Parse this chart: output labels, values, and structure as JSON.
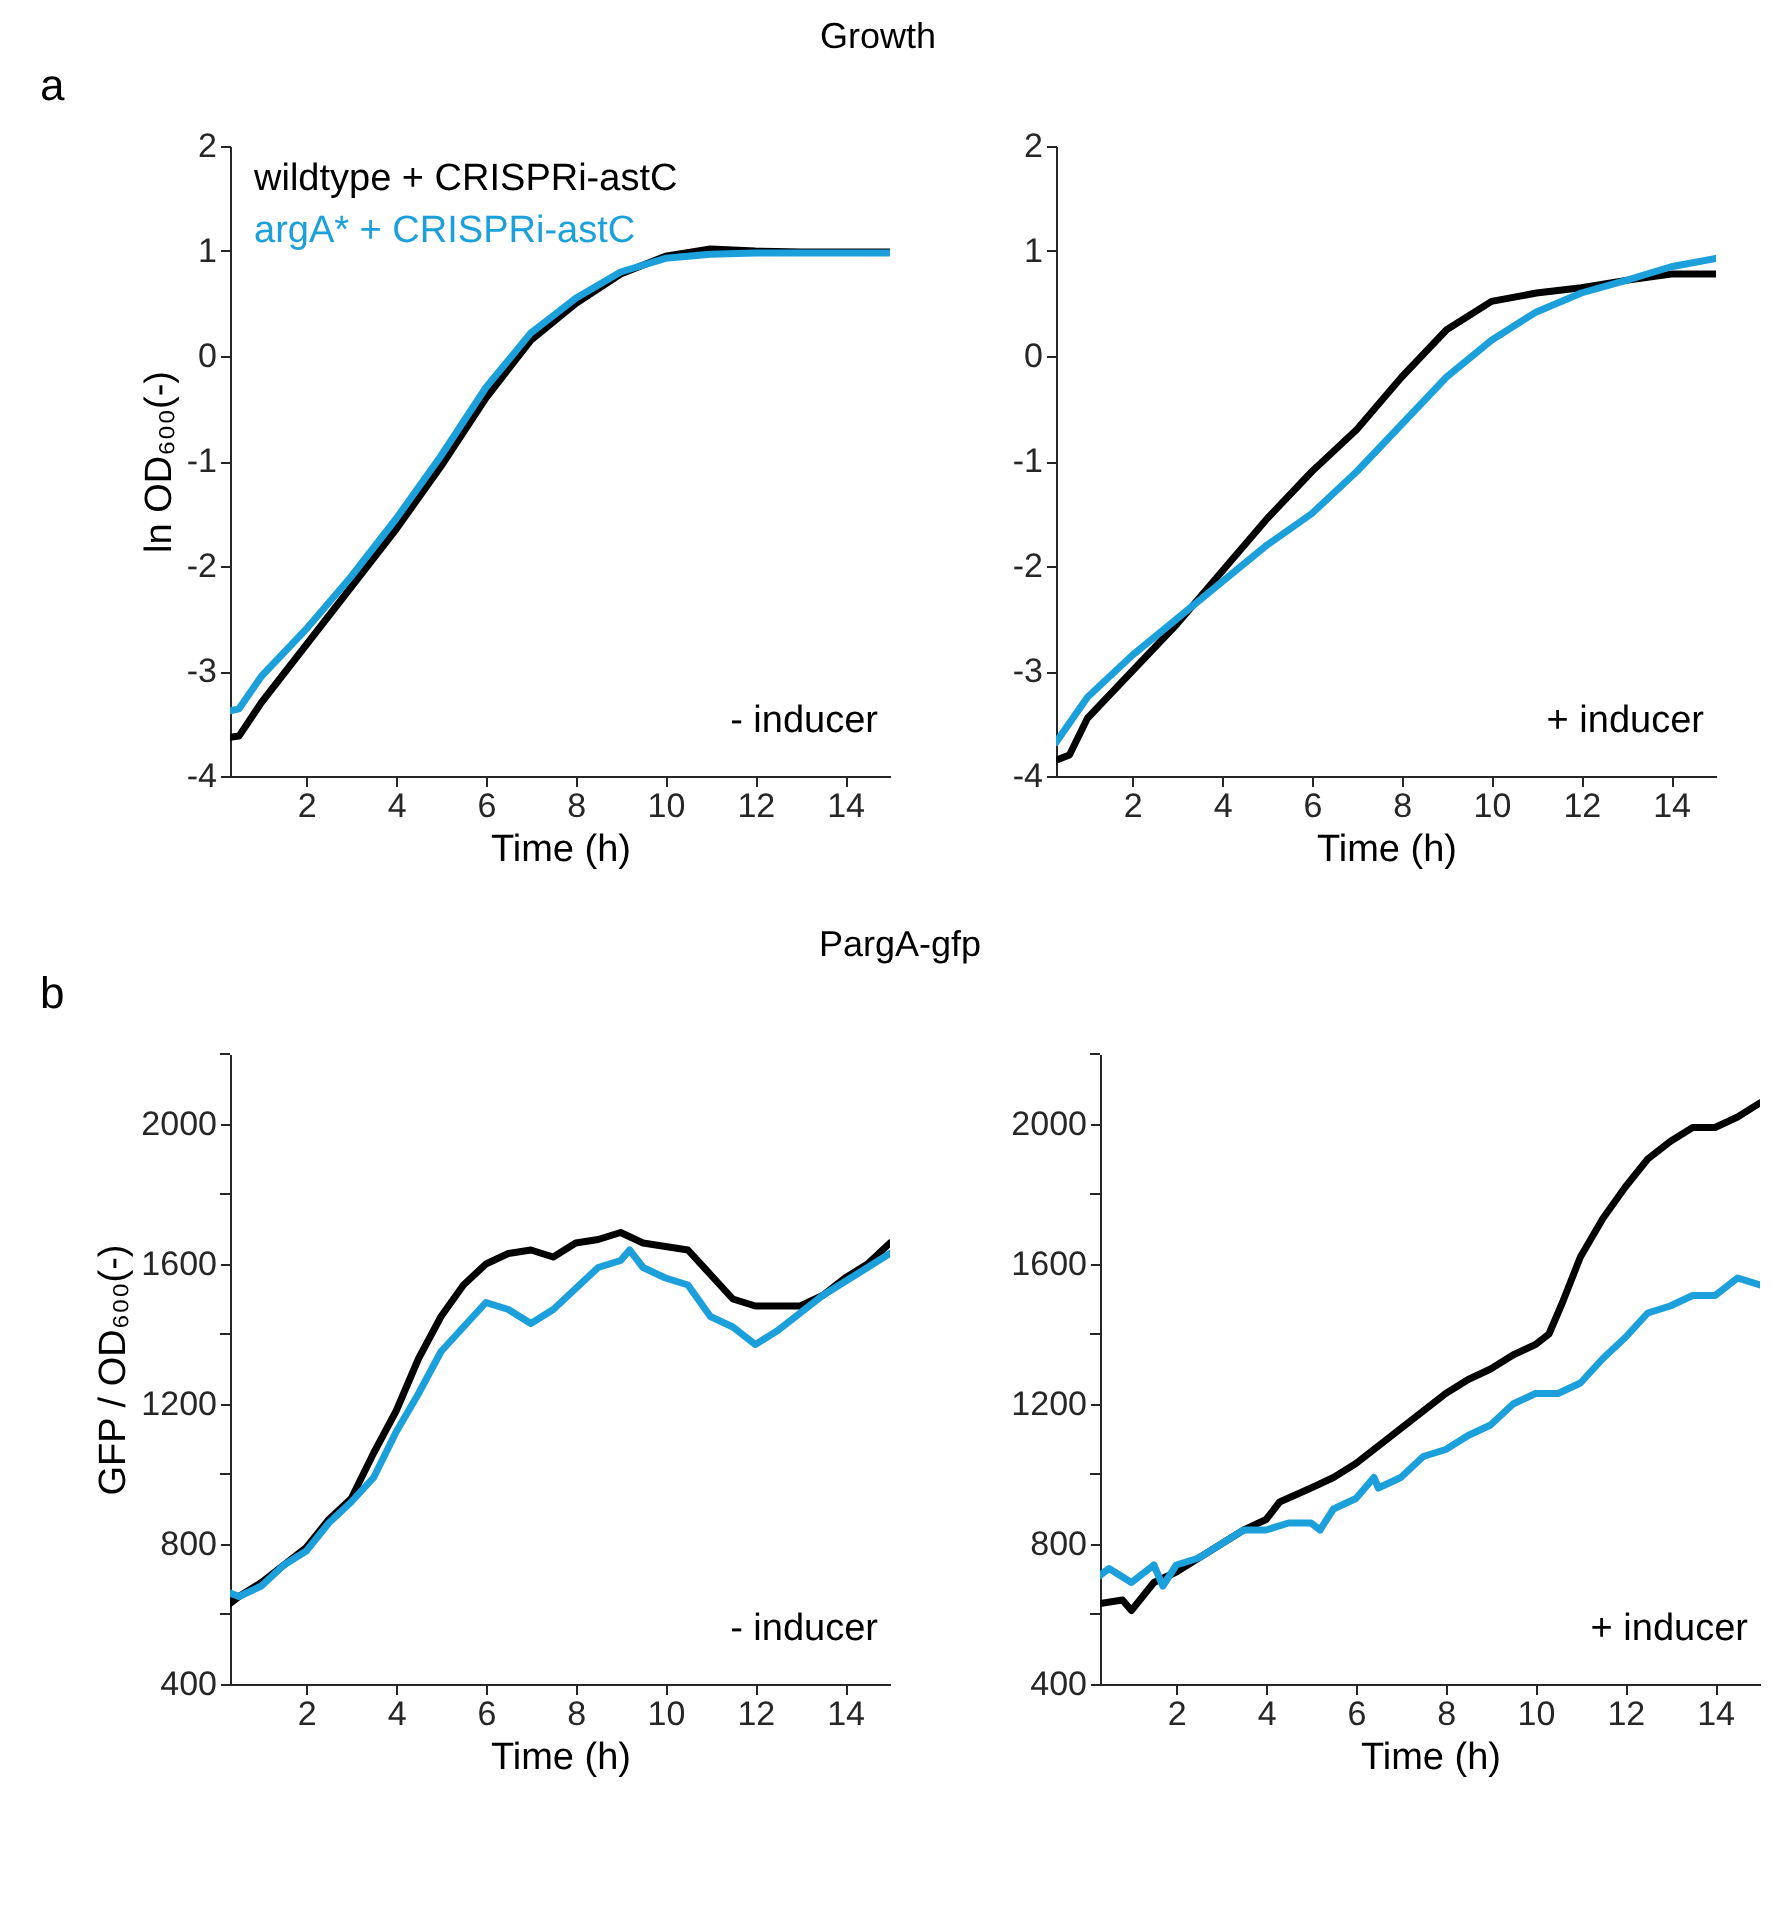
{
  "chart_data": [
    {
      "type": "line",
      "title": "Growth",
      "xlabel": "Time (h)",
      "ylabel": "ln OD₆₀₀(-)",
      "xlim": [
        0.3,
        15
      ],
      "ylim": [
        -4,
        2
      ],
      "xticks": [
        2,
        4,
        6,
        8,
        10,
        12,
        14
      ],
      "yticks": [
        -4,
        -3,
        -2,
        -1,
        0,
        1,
        2
      ],
      "legend": "top left",
      "annotations": [
        "a",
        "- inducer"
      ],
      "series": [
        {
          "name": "wildtype + CRISPRi-astC",
          "color": "#000000",
          "x": [
            0.3,
            0.5,
            1,
            2,
            3,
            4,
            5,
            6,
            7,
            8,
            9,
            10,
            11,
            12,
            13,
            14,
            15
          ],
          "values": [
            -3.63,
            -3.62,
            -3.3,
            -2.75,
            -2.2,
            -1.65,
            -1.05,
            -0.4,
            0.15,
            0.5,
            0.78,
            0.95,
            1.02,
            1.0,
            0.99,
            0.99,
            0.99
          ]
        },
        {
          "name": "argA* + CRISPRi-astC",
          "color": "#1ca0dc",
          "x": [
            0.3,
            0.5,
            1,
            2,
            3,
            4,
            5,
            6,
            7,
            8,
            9,
            10,
            11,
            12,
            13,
            14,
            15
          ],
          "values": [
            -3.38,
            -3.36,
            -3.05,
            -2.6,
            -2.1,
            -1.55,
            -0.95,
            -0.3,
            0.22,
            0.55,
            0.8,
            0.93,
            0.97,
            0.98,
            0.98,
            0.98,
            0.98
          ]
        }
      ]
    },
    {
      "type": "line",
      "xlabel": "Time (h)",
      "xlim": [
        0.3,
        15
      ],
      "ylim": [
        -4,
        2
      ],
      "xticks": [
        2,
        4,
        6,
        8,
        10,
        12,
        14
      ],
      "yticks": [
        -4,
        -3,
        -2,
        -1,
        0,
        1,
        2
      ],
      "annotations": [
        "+ inducer"
      ],
      "series": [
        {
          "color": "#000000",
          "x": [
            0.3,
            0.6,
            1,
            2,
            3,
            4,
            5,
            6,
            7,
            8,
            9,
            10,
            11,
            12,
            13,
            14,
            15
          ],
          "values": [
            -3.85,
            -3.8,
            -3.45,
            -3.0,
            -2.55,
            -2.05,
            -1.55,
            -1.1,
            -0.7,
            -0.2,
            0.25,
            0.52,
            0.6,
            0.65,
            0.72,
            0.78,
            0.78
          ]
        },
        {
          "color": "#1ca0dc",
          "x": [
            0.3,
            1,
            2,
            3,
            4,
            5,
            6,
            7,
            8,
            9,
            10,
            11,
            12,
            13,
            14,
            15
          ],
          "values": [
            -3.68,
            -3.25,
            -2.85,
            -2.5,
            -2.15,
            -1.8,
            -1.5,
            -1.1,
            -0.65,
            -0.2,
            0.15,
            0.42,
            0.6,
            0.72,
            0.85,
            0.93
          ]
        }
      ]
    },
    {
      "type": "line",
      "title": "PargA-gfp",
      "xlabel": "Time (h)",
      "ylabel": "GFP / OD₆₀₀(-)",
      "xlim": [
        0.3,
        15
      ],
      "ylim": [
        400,
        2200
      ],
      "xticks": [
        2,
        4,
        6,
        8,
        10,
        12,
        14
      ],
      "yticks": [
        400,
        {
          "value": 600,
          "label": null
        },
        800,
        {
          "value": 1000,
          "label": null
        },
        1200,
        {
          "value": 1400,
          "label": null
        },
        1600,
        {
          "value": 1800,
          "label": null
        },
        2000,
        {
          "value": 2200,
          "label": null
        }
      ],
      "annotations": [
        "b",
        "- inducer"
      ],
      "series": [
        {
          "color": "#000000",
          "x": [
            0.3,
            0.5,
            1,
            1.5,
            2,
            2.5,
            3,
            3.5,
            4,
            4.5,
            5,
            5.5,
            6,
            6.5,
            7,
            7.5,
            8,
            8.5,
            9,
            9.5,
            10,
            10.5,
            11,
            11.5,
            12,
            12.5,
            13,
            13.5,
            14,
            14.5,
            15
          ],
          "values": [
            630,
            650,
            690,
            740,
            790,
            870,
            930,
            1060,
            1180,
            1330,
            1450,
            1540,
            1600,
            1630,
            1640,
            1620,
            1660,
            1670,
            1690,
            1660,
            1650,
            1640,
            1570,
            1500,
            1480,
            1480,
            1480,
            1510,
            1560,
            1600,
            1660
          ]
        },
        {
          "color": "#1ca0dc",
          "x": [
            0.3,
            0.5,
            1,
            1.5,
            2,
            2.5,
            3,
            3.5,
            4,
            4.5,
            5,
            5.5,
            6,
            6.5,
            7,
            7.5,
            8,
            8.5,
            9,
            9.2,
            9.5,
            10,
            10.5,
            11,
            11.5,
            12,
            12.5,
            13,
            13.5,
            14,
            14.5,
            15
          ],
          "values": [
            660,
            650,
            680,
            740,
            780,
            860,
            920,
            990,
            1120,
            1230,
            1350,
            1420,
            1490,
            1470,
            1430,
            1470,
            1530,
            1590,
            1610,
            1640,
            1590,
            1560,
            1540,
            1450,
            1420,
            1370,
            1410,
            1460,
            1510,
            1550,
            1590,
            1630
          ]
        }
      ]
    },
    {
      "type": "line",
      "xlabel": "Time (h)",
      "xlim": [
        0.3,
        15
      ],
      "ylim": [
        400,
        2200
      ],
      "xticks": [
        2,
        4,
        6,
        8,
        10,
        12,
        14
      ],
      "yticks": [
        400,
        {
          "value": 600,
          "label": null
        },
        800,
        {
          "value": 1000,
          "label": null
        },
        1200,
        {
          "value": 1400,
          "label": null
        },
        1600,
        {
          "value": 1800,
          "label": null
        },
        2000,
        {
          "value": 2200,
          "label": null
        }
      ],
      "annotations": [
        "+ inducer"
      ],
      "series": [
        {
          "color": "#000000",
          "x": [
            0.3,
            0.8,
            1,
            1.5,
            2,
            2.5,
            3,
            3.5,
            4,
            4.3,
            5,
            5.5,
            6,
            6.5,
            7,
            7.5,
            8,
            8.5,
            9,
            9.5,
            10,
            10.3,
            10.6,
            11,
            11.5,
            12,
            12.5,
            13,
            13.5,
            14,
            14.5,
            15
          ],
          "values": [
            630,
            640,
            610,
            690,
            720,
            760,
            800,
            840,
            870,
            920,
            960,
            990,
            1030,
            1080,
            1130,
            1180,
            1230,
            1270,
            1300,
            1340,
            1370,
            1400,
            1490,
            1620,
            1730,
            1820,
            1900,
            1950,
            1990,
            1990,
            2020,
            2060
          ]
        },
        {
          "color": "#1ca0dc",
          "x": [
            0.3,
            0.5,
            1,
            1.5,
            1.7,
            2,
            2.5,
            3,
            3.5,
            4,
            4.5,
            5,
            5.2,
            5.5,
            6,
            6.4,
            6.5,
            7,
            7.5,
            8,
            8.5,
            9,
            9.5,
            10,
            10.5,
            11,
            11.5,
            12,
            12.5,
            13,
            13.5,
            14,
            14.5,
            15
          ],
          "values": [
            710,
            730,
            690,
            740,
            680,
            740,
            760,
            800,
            840,
            840,
            860,
            860,
            840,
            900,
            930,
            990,
            960,
            990,
            1050,
            1070,
            1110,
            1140,
            1200,
            1230,
            1230,
            1260,
            1330,
            1390,
            1460,
            1480,
            1510,
            1510,
            1560,
            1540
          ]
        }
      ]
    }
  ]
}
